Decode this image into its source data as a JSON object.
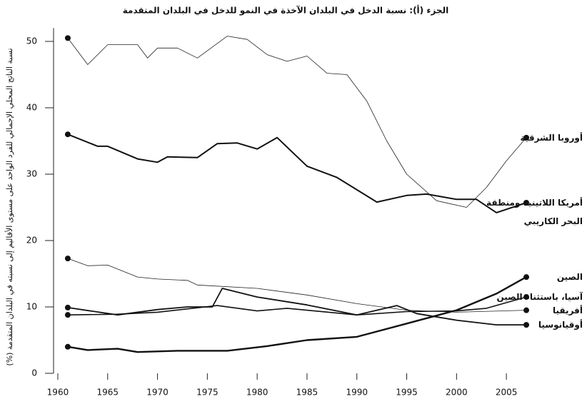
{
  "chart_data": {
    "type": "line",
    "title": "الجزء (أ): نسبة الدخل في البلدان الآخذة في النمو للدخل في البلدان المتقدمة",
    "y_label": "نسبة الناتج المحلي الإجمالي للفرد الواحد على مستوى الأقاليم إلى نسبته في البلدان المتقدمة (%)",
    "xlim": [
      1959,
      2008
    ],
    "xticks": [
      1960,
      1965,
      1970,
      1975,
      1980,
      1985,
      1990,
      1995,
      2000,
      2005
    ],
    "ylim": [
      0,
      52
    ],
    "yticks": [
      0,
      10,
      20,
      30,
      40,
      50
    ],
    "series": [
      {
        "name": "أوروبا الشرقية",
        "color": "#222222",
        "width": 0.8,
        "x": [
          1961,
          1963,
          1965,
          1968,
          1969,
          1970,
          1972,
          1974,
          1977,
          1979,
          1981,
          1983,
          1985,
          1987,
          1989,
          1991,
          1993,
          1995,
          1998,
          2001,
          2003,
          2005,
          2007
        ],
        "values": [
          50.5,
          46.5,
          49.5,
          49.5,
          47.5,
          49,
          49,
          47.5,
          50.8,
          50.3,
          48,
          47,
          47.8,
          45.2,
          45,
          41,
          35,
          30,
          26,
          25,
          28,
          32,
          35.5
        ]
      },
      {
        "name": "أمريكا اللاتينية ومنطقة البحر الكاريبي",
        "color": "#111111",
        "width": 2,
        "x": [
          1961,
          1964,
          1965,
          1968,
          1970,
          1971,
          1974,
          1976,
          1978,
          1980,
          1982,
          1985,
          1988,
          1992,
          1995,
          1997,
          2000,
          2002,
          2004,
          2007
        ],
        "values": [
          36,
          34.2,
          34.2,
          32.3,
          31.8,
          32.6,
          32.5,
          34.6,
          34.7,
          33.8,
          35.5,
          31.2,
          29.5,
          25.8,
          26.8,
          27,
          26.2,
          26.2,
          24.2,
          25.7
        ]
      },
      {
        "name": "الصين",
        "color": "#111111",
        "width": 2.4,
        "x": [
          1961,
          1963,
          1966,
          1968,
          1972,
          1977,
          1981,
          1985,
          1990,
          1995,
          2000,
          2004,
          2007
        ],
        "values": [
          4,
          3.5,
          3.7,
          3.2,
          3.4,
          3.4,
          4.1,
          5,
          5.5,
          7.5,
          9.5,
          12,
          14.5
        ]
      },
      {
        "name": "آسيا، باستثناء الصين",
        "color": "#111111",
        "width": 1.6,
        "x": [
          1961,
          1966,
          1970,
          1976,
          1980,
          1983,
          1990,
          1995,
          2000,
          2003,
          2007
        ],
        "values": [
          8.8,
          8.9,
          9.2,
          10.2,
          9.4,
          9.8,
          8.8,
          9.3,
          9.4,
          9.8,
          11.5
        ]
      },
      {
        "name": "أفريقيا",
        "color": "#222222",
        "width": 0.8,
        "x": [
          1961,
          1963,
          1965,
          1968,
          1970,
          1973,
          1974,
          1980,
          1985,
          1990,
          1995,
          2000,
          2007
        ],
        "values": [
          17.3,
          16.2,
          16.3,
          14.5,
          14.2,
          14,
          13.3,
          12.8,
          11.8,
          10.5,
          9.5,
          9.2,
          9.5
        ]
      },
      {
        "name": "أوقيانوسيا",
        "color": "#111111",
        "width": 1.8,
        "x": [
          1961,
          1966,
          1970,
          1973,
          1975.5,
          1976.5,
          1980,
          1985,
          1988,
          1990,
          1992,
          1994,
          1996,
          2000,
          2004,
          2007
        ],
        "values": [
          9.9,
          8.8,
          9.6,
          10,
          10,
          12.8,
          11.5,
          10.3,
          9.4,
          8.8,
          9.5,
          10.2,
          9,
          8,
          7.3,
          7.3
        ]
      }
    ]
  }
}
